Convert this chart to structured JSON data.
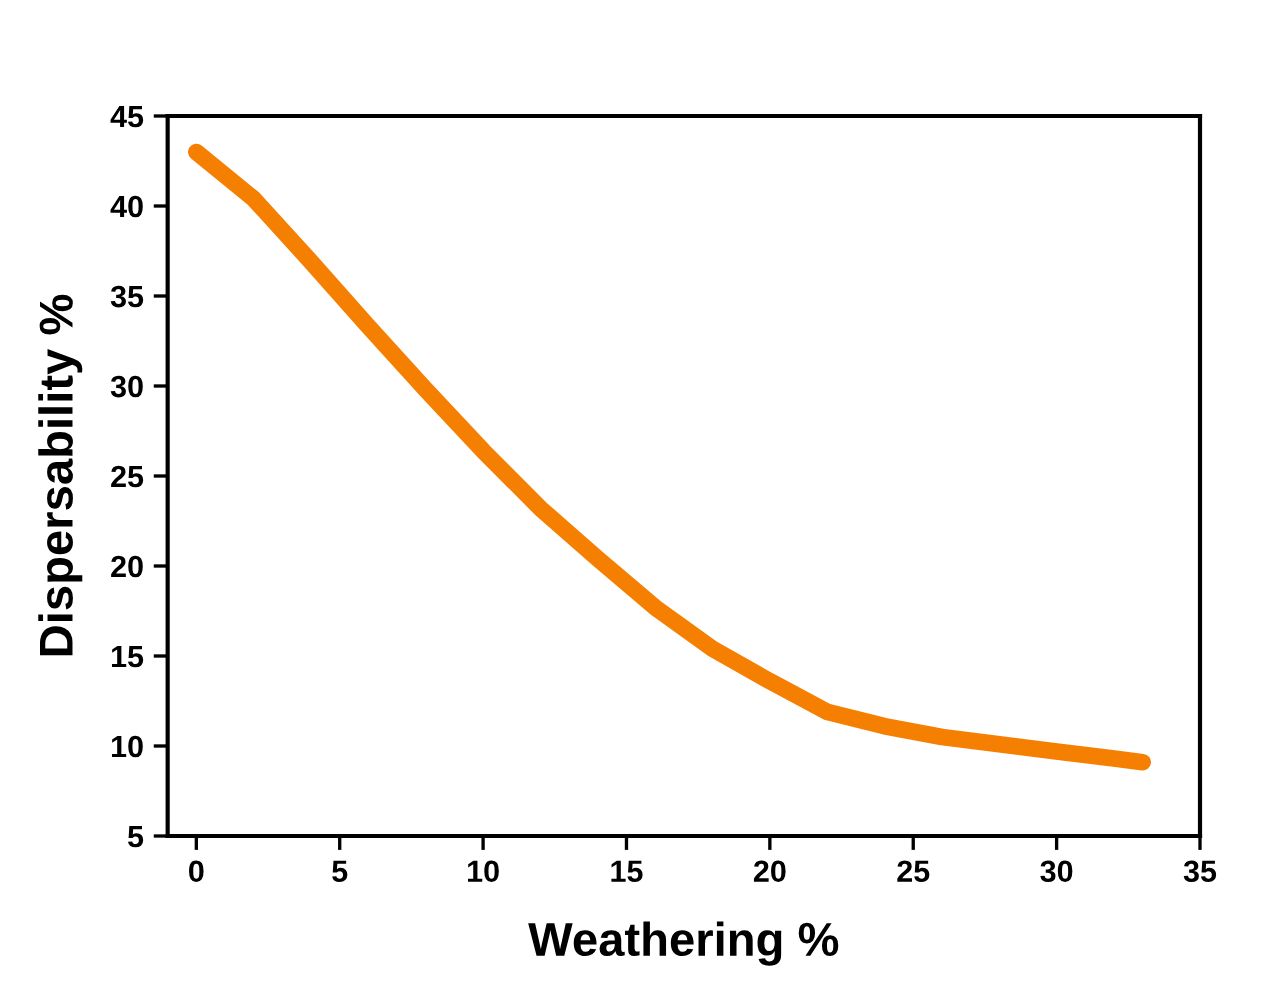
{
  "chart_data": {
    "type": "line",
    "xlabel": "Weathering %",
    "ylabel": "Dispersability %",
    "xlim": [
      -1,
      35
    ],
    "ylim": [
      5,
      45
    ],
    "xticks": [
      0,
      5,
      10,
      15,
      20,
      25,
      30,
      35
    ],
    "yticks": [
      5,
      10,
      15,
      20,
      25,
      30,
      35,
      40,
      45
    ],
    "grid": false,
    "legend": false,
    "marker": "none",
    "line_style": "solid",
    "series": [
      {
        "color": "#f57f00",
        "x": [
          0,
          2,
          4,
          6,
          8,
          10,
          12,
          14,
          16,
          18,
          20,
          22,
          24,
          26,
          28,
          30,
          32,
          33
        ],
        "values": [
          43,
          40.4,
          36.9,
          33.3,
          29.8,
          26.4,
          23.2,
          20.4,
          17.7,
          15.4,
          13.6,
          11.9,
          11.1,
          10.5,
          10.1,
          9.7,
          9.3,
          9.1
        ]
      }
    ]
  }
}
